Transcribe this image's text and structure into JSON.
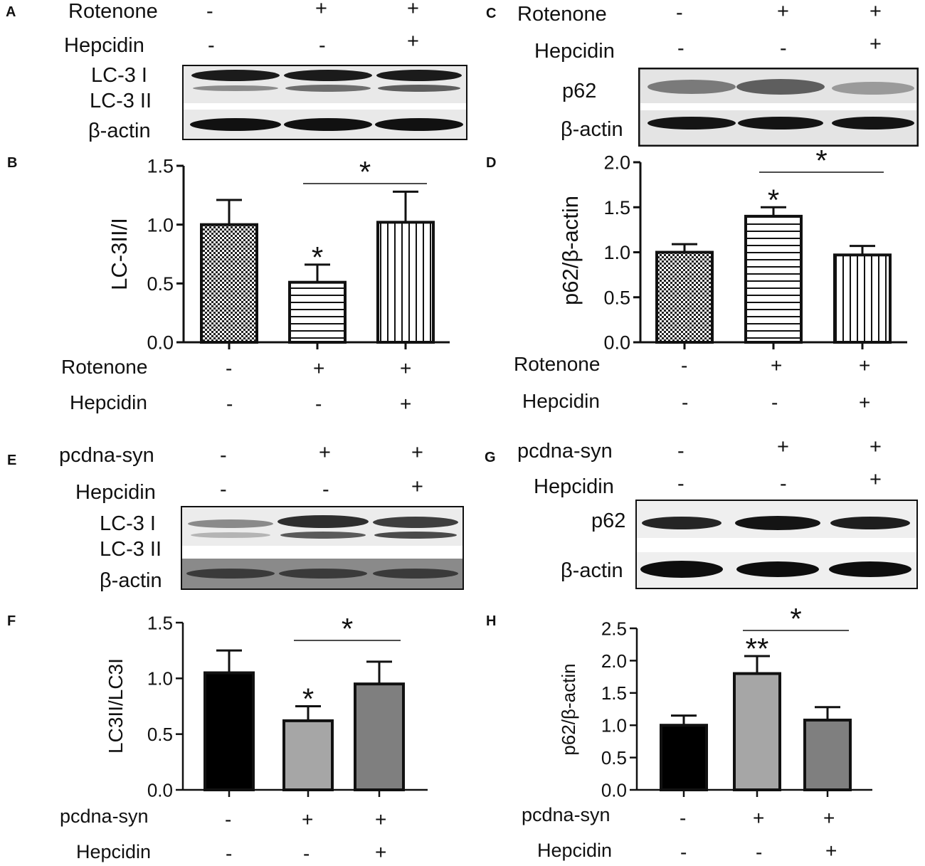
{
  "panels": {
    "A": {
      "letter": "A",
      "rows": [
        {
          "label": "Rotenone",
          "signs": [
            "-",
            "+",
            "+"
          ]
        },
        {
          "label": "Hepcidin",
          "signs": [
            "-",
            "-",
            "+"
          ]
        }
      ],
      "blot_labels": [
        "LC-3 I",
        "LC-3 II",
        "β-actin"
      ]
    },
    "C": {
      "letter": "C",
      "rows": [
        {
          "label": "Rotenone",
          "signs": [
            "-",
            "+",
            "+"
          ]
        },
        {
          "label": "Hepcidin",
          "signs": [
            "-",
            "-",
            "+"
          ]
        }
      ],
      "blot_labels": [
        "p62",
        "β-actin"
      ]
    },
    "E": {
      "letter": "E",
      "rows": [
        {
          "label": "pcdna-syn",
          "signs": [
            "-",
            "+",
            "+"
          ]
        },
        {
          "label": "Hepcidin",
          "signs": [
            "-",
            "-",
            "+"
          ]
        }
      ],
      "blot_labels": [
        "LC-3 I",
        "LC-3 II",
        "β-actin"
      ]
    },
    "G": {
      "letter": "G",
      "rows": [
        {
          "label": "pcdna-syn",
          "signs": [
            "-",
            "+",
            "+"
          ]
        },
        {
          "label": "Hepcidin",
          "signs": [
            "-",
            "-",
            "+"
          ]
        }
      ],
      "blot_labels": [
        "p62",
        "β-actin"
      ]
    },
    "B": {
      "letter": "B",
      "rows": [
        {
          "label": "Rotenone",
          "signs": [
            "-",
            "+",
            "+"
          ]
        },
        {
          "label": "Hepcidin",
          "signs": [
            "-",
            "-",
            "+"
          ]
        }
      ]
    },
    "D": {
      "letter": "D",
      "rows": [
        {
          "label": "Rotenone",
          "signs": [
            "-",
            "+",
            "+"
          ]
        },
        {
          "label": "Hepcidin",
          "signs": [
            "-",
            "-",
            "+"
          ]
        }
      ]
    },
    "F": {
      "letter": "F",
      "rows": [
        {
          "label": "pcdna-syn",
          "signs": [
            "-",
            "+",
            "+"
          ]
        },
        {
          "label": "Hepcidin",
          "signs": [
            "-",
            "-",
            "+"
          ]
        }
      ]
    },
    "H": {
      "letter": "H",
      "rows": [
        {
          "label": "pcdna-syn",
          "signs": [
            "-",
            "+",
            "+"
          ]
        },
        {
          "label": "Hepcidin",
          "signs": [
            "-",
            "-",
            "+"
          ]
        }
      ]
    }
  },
  "chart_data": [
    {
      "panel": "B",
      "type": "bar",
      "ylabel": "LC-3II/I",
      "ylim": [
        0,
        1.5
      ],
      "yticks": [
        "0.0",
        "0.5",
        "1.0",
        "1.5"
      ],
      "values": [
        1.0,
        0.51,
        1.02
      ],
      "errors": [
        0.21,
        0.15,
        0.26
      ],
      "patterns": [
        "checker",
        "hstripe",
        "vstripe"
      ],
      "bar_marks": [
        "",
        "*",
        ""
      ],
      "bracket": {
        "from": 1,
        "to": 2,
        "mark": "*"
      }
    },
    {
      "panel": "D",
      "type": "bar",
      "ylabel": "p62/β-actin",
      "ylim": [
        0,
        2.0
      ],
      "yticks": [
        "0.0",
        "0.5",
        "1.0",
        "1.5",
        "2.0"
      ],
      "values": [
        1.0,
        1.4,
        0.97
      ],
      "errors": [
        0.09,
        0.1,
        0.1
      ],
      "patterns": [
        "checker",
        "hstripe",
        "vstripe"
      ],
      "bar_marks": [
        "",
        "*",
        ""
      ],
      "bracket": {
        "from": 1,
        "to": 2,
        "mark": "*"
      }
    },
    {
      "panel": "F",
      "type": "bar",
      "ylabel": "LC3II/LC3I",
      "ylim": [
        0,
        1.5
      ],
      "yticks": [
        "0.0",
        "0.5",
        "1.0",
        "1.5"
      ],
      "values": [
        1.05,
        0.62,
        0.95
      ],
      "errors": [
        0.2,
        0.13,
        0.2
      ],
      "colors": [
        "#000000",
        "#a6a6a6",
        "#7f7f7f"
      ],
      "bar_marks": [
        "",
        "*",
        ""
      ],
      "bracket": {
        "from": 1,
        "to": 2,
        "mark": "*"
      }
    },
    {
      "panel": "H",
      "type": "bar",
      "ylabel": "p62/β-actin",
      "ylim": [
        0,
        2.5
      ],
      "yticks": [
        "0.0",
        "0.5",
        "1.0",
        "1.5",
        "2.0",
        "2.5"
      ],
      "values": [
        1.0,
        1.8,
        1.08
      ],
      "errors": [
        0.15,
        0.27,
        0.2
      ],
      "colors": [
        "#000000",
        "#a6a6a6",
        "#7f7f7f"
      ],
      "bar_marks": [
        "",
        "**",
        ""
      ],
      "bracket": {
        "from": 1,
        "to": 2,
        "mark": "*"
      }
    }
  ]
}
